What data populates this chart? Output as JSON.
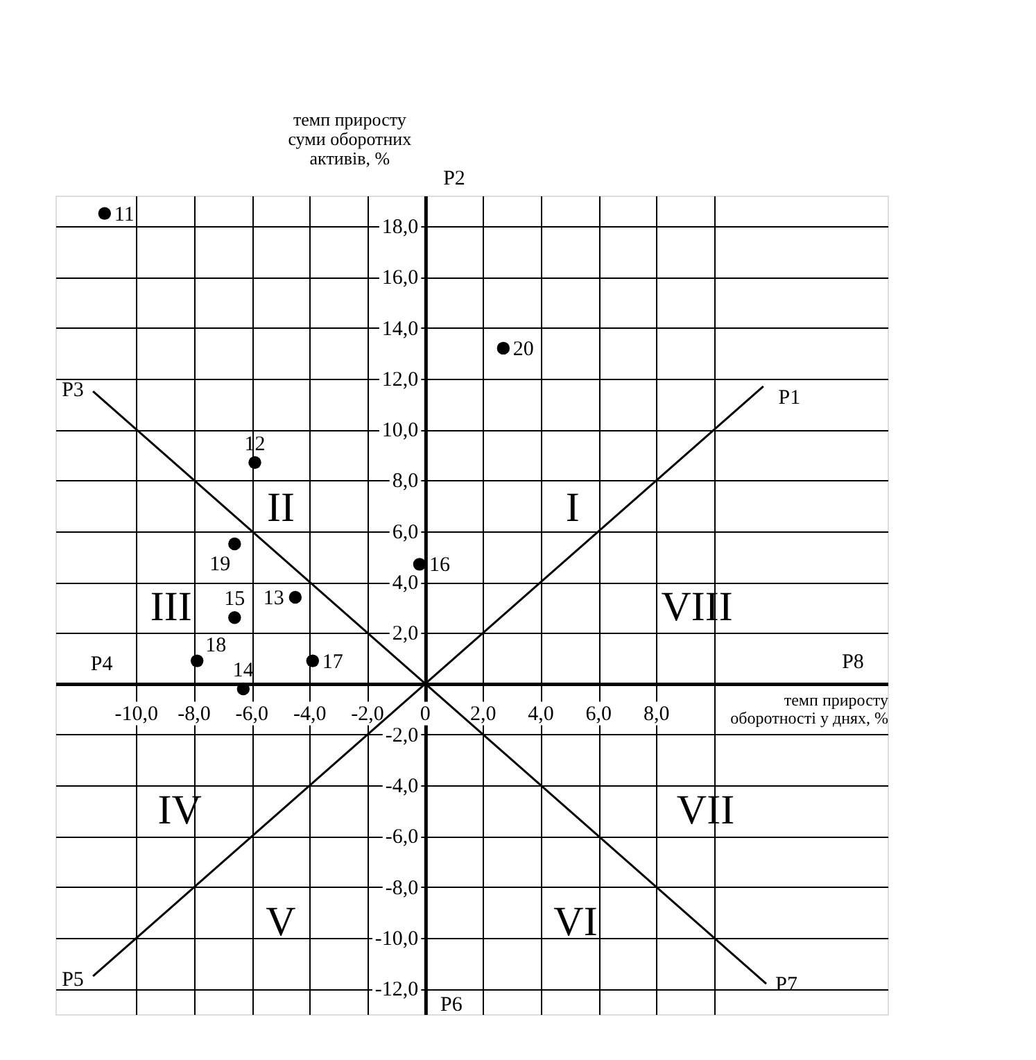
{
  "chart_data": {
    "type": "scatter",
    "xlabel": "темп приросту оборотності у днях, %",
    "ylabel": "темп приросту суми оборотних активів, %",
    "xlim": [
      -12.8,
      16
    ],
    "ylim": [
      -13,
      19.2
    ],
    "xticks": [
      {
        "value": -10,
        "label": "-10,0"
      },
      {
        "value": -8,
        "label": "-8,0"
      },
      {
        "value": -6,
        "label": "-6,0"
      },
      {
        "value": -4,
        "label": "-4,0"
      },
      {
        "value": -2,
        "label": "-2,0"
      },
      {
        "value": 0,
        "label": "0"
      },
      {
        "value": 2,
        "label": "2,0"
      },
      {
        "value": 4,
        "label": "4,0"
      },
      {
        "value": 6,
        "label": "6,0"
      },
      {
        "value": 8,
        "label": "8,0"
      },
      {
        "value": 10,
        "label": null
      }
    ],
    "yticks": [
      {
        "value": -12,
        "label": "-12,0"
      },
      {
        "value": -10,
        "label": "-10,0"
      },
      {
        "value": -8,
        "label": "-8,0"
      },
      {
        "value": -6,
        "label": "-6,0"
      },
      {
        "value": -4,
        "label": "-4,0"
      },
      {
        "value": -2,
        "label": "-2,0"
      },
      {
        "value": 2,
        "label": "2,0"
      },
      {
        "value": 4,
        "label": "4,0"
      },
      {
        "value": 6,
        "label": "6,0"
      },
      {
        "value": 8,
        "label": "8,0"
      },
      {
        "value": 10,
        "label": "10,0"
      },
      {
        "value": 12,
        "label": "12,0"
      },
      {
        "value": 14,
        "label": "14,0"
      },
      {
        "value": 16,
        "label": "16,0"
      },
      {
        "value": 18,
        "label": "18,0"
      }
    ],
    "grid": true,
    "marker": "circle",
    "series": [
      {
        "color": "#000000",
        "x": [
          -11.1,
          -5.9,
          -4.5,
          -6.3,
          -6.6,
          -0.2,
          -3.9,
          -7.9,
          -6.6,
          2.7
        ],
        "values": [
          18.5,
          8.7,
          3.4,
          -0.2,
          2.6,
          4.7,
          0.9,
          0.9,
          5.5,
          13.2
        ]
      },
      {
        "type": "line",
        "color": "#000000",
        "marker": "none",
        "line_style": "solid",
        "x": [
          -11.5,
          11.7
        ],
        "values": [
          -11.5,
          11.7
        ]
      },
      {
        "type": "line",
        "color": "#000000",
        "marker": "none",
        "line_style": "solid",
        "x": [
          -11.5,
          11.8
        ],
        "values": [
          11.5,
          -11.8
        ]
      }
    ],
    "annotations": [
      {
        "text": "11",
        "x": -11.1,
        "y": 18.5
      },
      {
        "text": "12",
        "x": -5.9,
        "y": 8.7
      },
      {
        "text": "13",
        "x": -4.5,
        "y": 3.4
      },
      {
        "text": "14",
        "x": -6.3,
        "y": -0.2
      },
      {
        "text": "15",
        "x": -6.6,
        "y": 2.6
      },
      {
        "text": "16",
        "x": -0.2,
        "y": 4.7
      },
      {
        "text": "17",
        "x": -3.9,
        "y": 0.9
      },
      {
        "text": "18",
        "x": -7.9,
        "y": 0.9
      },
      {
        "text": "19",
        "x": -6.6,
        "y": 5.5
      },
      {
        "text": "20",
        "x": 2.7,
        "y": 13.2
      },
      "I",
      "II",
      "III",
      "IV",
      "V",
      "VI",
      "VII",
      "VIII",
      "P1",
      "P2",
      "P3",
      "P4",
      "P5",
      "P6",
      "P7",
      "P8"
    ]
  }
}
